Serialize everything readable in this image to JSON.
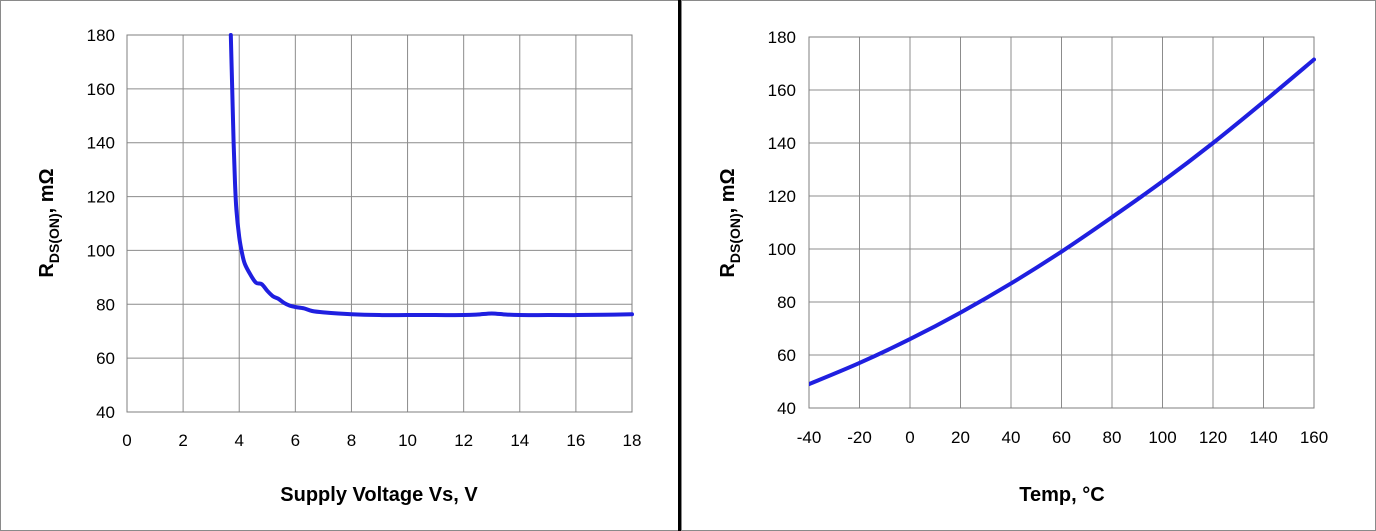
{
  "chart_data": [
    {
      "type": "line",
      "xlabel": "Supply Voltage Vs, V",
      "ylabel_main": "R",
      "ylabel_sub": "DS(ON)",
      "ylabel_suffix": ", mΩ",
      "xlim": [
        0,
        18
      ],
      "ylim": [
        40,
        180
      ],
      "x_ticks": [
        "0",
        "2",
        "4",
        "6",
        "8",
        "10",
        "12",
        "14",
        "16",
        "18"
      ],
      "y_ticks": [
        "40",
        "60",
        "80",
        "100",
        "120",
        "140",
        "160",
        "180"
      ],
      "grid": true,
      "line_color": "#1f1fe0",
      "series": [
        {
          "x": [
            3.7,
            3.75,
            3.8,
            3.85,
            3.9,
            4.0,
            4.1,
            4.2,
            4.4,
            4.6,
            4.8,
            5.0,
            5.2,
            5.4,
            5.6,
            5.8,
            6.0,
            6.3,
            6.6,
            7.0,
            8.0,
            9.0,
            10.0,
            11.0,
            12.0,
            12.5,
            13.0,
            13.5,
            14.0,
            15.0,
            16.0,
            17.0,
            18.0
          ],
          "y": [
            180,
            160,
            140,
            125,
            115,
            105,
            99,
            95,
            91,
            88,
            87.5,
            85,
            83,
            82,
            80.5,
            79.5,
            79,
            78.5,
            77.5,
            77,
            76.3,
            76,
            76,
            76,
            76,
            76.2,
            76.6,
            76.2,
            76,
            76,
            76,
            76.1,
            76.3
          ]
        }
      ]
    },
    {
      "type": "line",
      "xlabel": "Temp, °C",
      "ylabel_main": "R",
      "ylabel_sub": "DS(ON)",
      "ylabel_suffix": ", mΩ",
      "xlim": [
        -40,
        160
      ],
      "ylim": [
        40,
        180
      ],
      "x_ticks": [
        "-40",
        "-20",
        "0",
        "20",
        "40",
        "60",
        "80",
        "100",
        "120",
        "140",
        "160"
      ],
      "y_ticks": [
        "40",
        "60",
        "80",
        "100",
        "120",
        "140",
        "160",
        "180"
      ],
      "grid": true,
      "line_color": "#1f1fe0",
      "series": [
        {
          "x": [
            -40,
            -20,
            0,
            20,
            40,
            60,
            80,
            100,
            120,
            140,
            160
          ],
          "y": [
            49,
            57,
            66,
            76,
            87,
            99,
            112,
            125.5,
            140,
            155.5,
            171.5
          ]
        }
      ]
    }
  ]
}
